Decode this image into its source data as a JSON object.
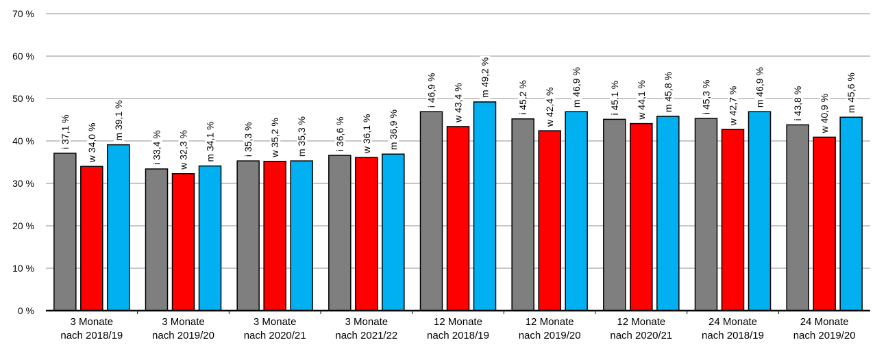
{
  "chart_data": {
    "type": "bar",
    "categories": [
      [
        "3 Monate",
        "nach 2018/19"
      ],
      [
        "3 Monate",
        "nach 2019/20"
      ],
      [
        "3 Monate",
        "nach 2020/21"
      ],
      [
        "3 Monate",
        "nach 2021/22"
      ],
      [
        "12 Monate",
        "nach 2018/19"
      ],
      [
        "12 Monate",
        "nach 2019/20"
      ],
      [
        "12 Monate",
        "nach 2020/21"
      ],
      [
        "24 Monate",
        "nach 2018/19"
      ],
      [
        "24 Monate",
        "nach 2019/20"
      ]
    ],
    "series": [
      {
        "color": "#7f7f7f",
        "values": [
          37.1,
          33.4,
          35.3,
          36.6,
          46.9,
          45.2,
          45.1,
          45.3,
          43.8
        ],
        "labels": [
          "i 37,1 %",
          "i 33,4 %",
          "i 35,3 %",
          "i 36,6 %",
          "i 46,9 %",
          "i 45,2 %",
          "i 45,1 %",
          "i 45,3 %",
          "i 43,8 %"
        ]
      },
      {
        "color": "#ff0000",
        "values": [
          34.0,
          32.3,
          35.2,
          36.1,
          43.4,
          42.4,
          44.1,
          42.7,
          40.9
        ],
        "labels": [
          "w 34,0 %",
          "w 32,3 %",
          "w 35,2 %",
          "w 36,1 %",
          "w 43,4 %",
          "w 42,4 %",
          "w 44,1 %",
          "w 42,7 %",
          "w 40,9 %"
        ]
      },
      {
        "color": "#00b0f0",
        "values": [
          39.1,
          34.1,
          35.3,
          36.9,
          49.2,
          46.9,
          45.8,
          46.9,
          45.6
        ],
        "labels": [
          "m 39,1 %",
          "m 34,1 %",
          "m 35,3 %",
          "m 36,9 %",
          "m 49,2 %",
          "m 46,9 %",
          "m 45,8 %",
          "m 46,9 %",
          "m 45,6 %"
        ]
      }
    ],
    "ylim": [
      0,
      70
    ],
    "yticks": [
      0,
      10,
      20,
      30,
      40,
      50,
      60,
      70
    ],
    "ytick_labels": [
      "0 %",
      "10 %",
      "20 %",
      "30 %",
      "40 %",
      "50 %",
      "60 %",
      "70 %"
    ],
    "grid": true,
    "legend": false
  }
}
